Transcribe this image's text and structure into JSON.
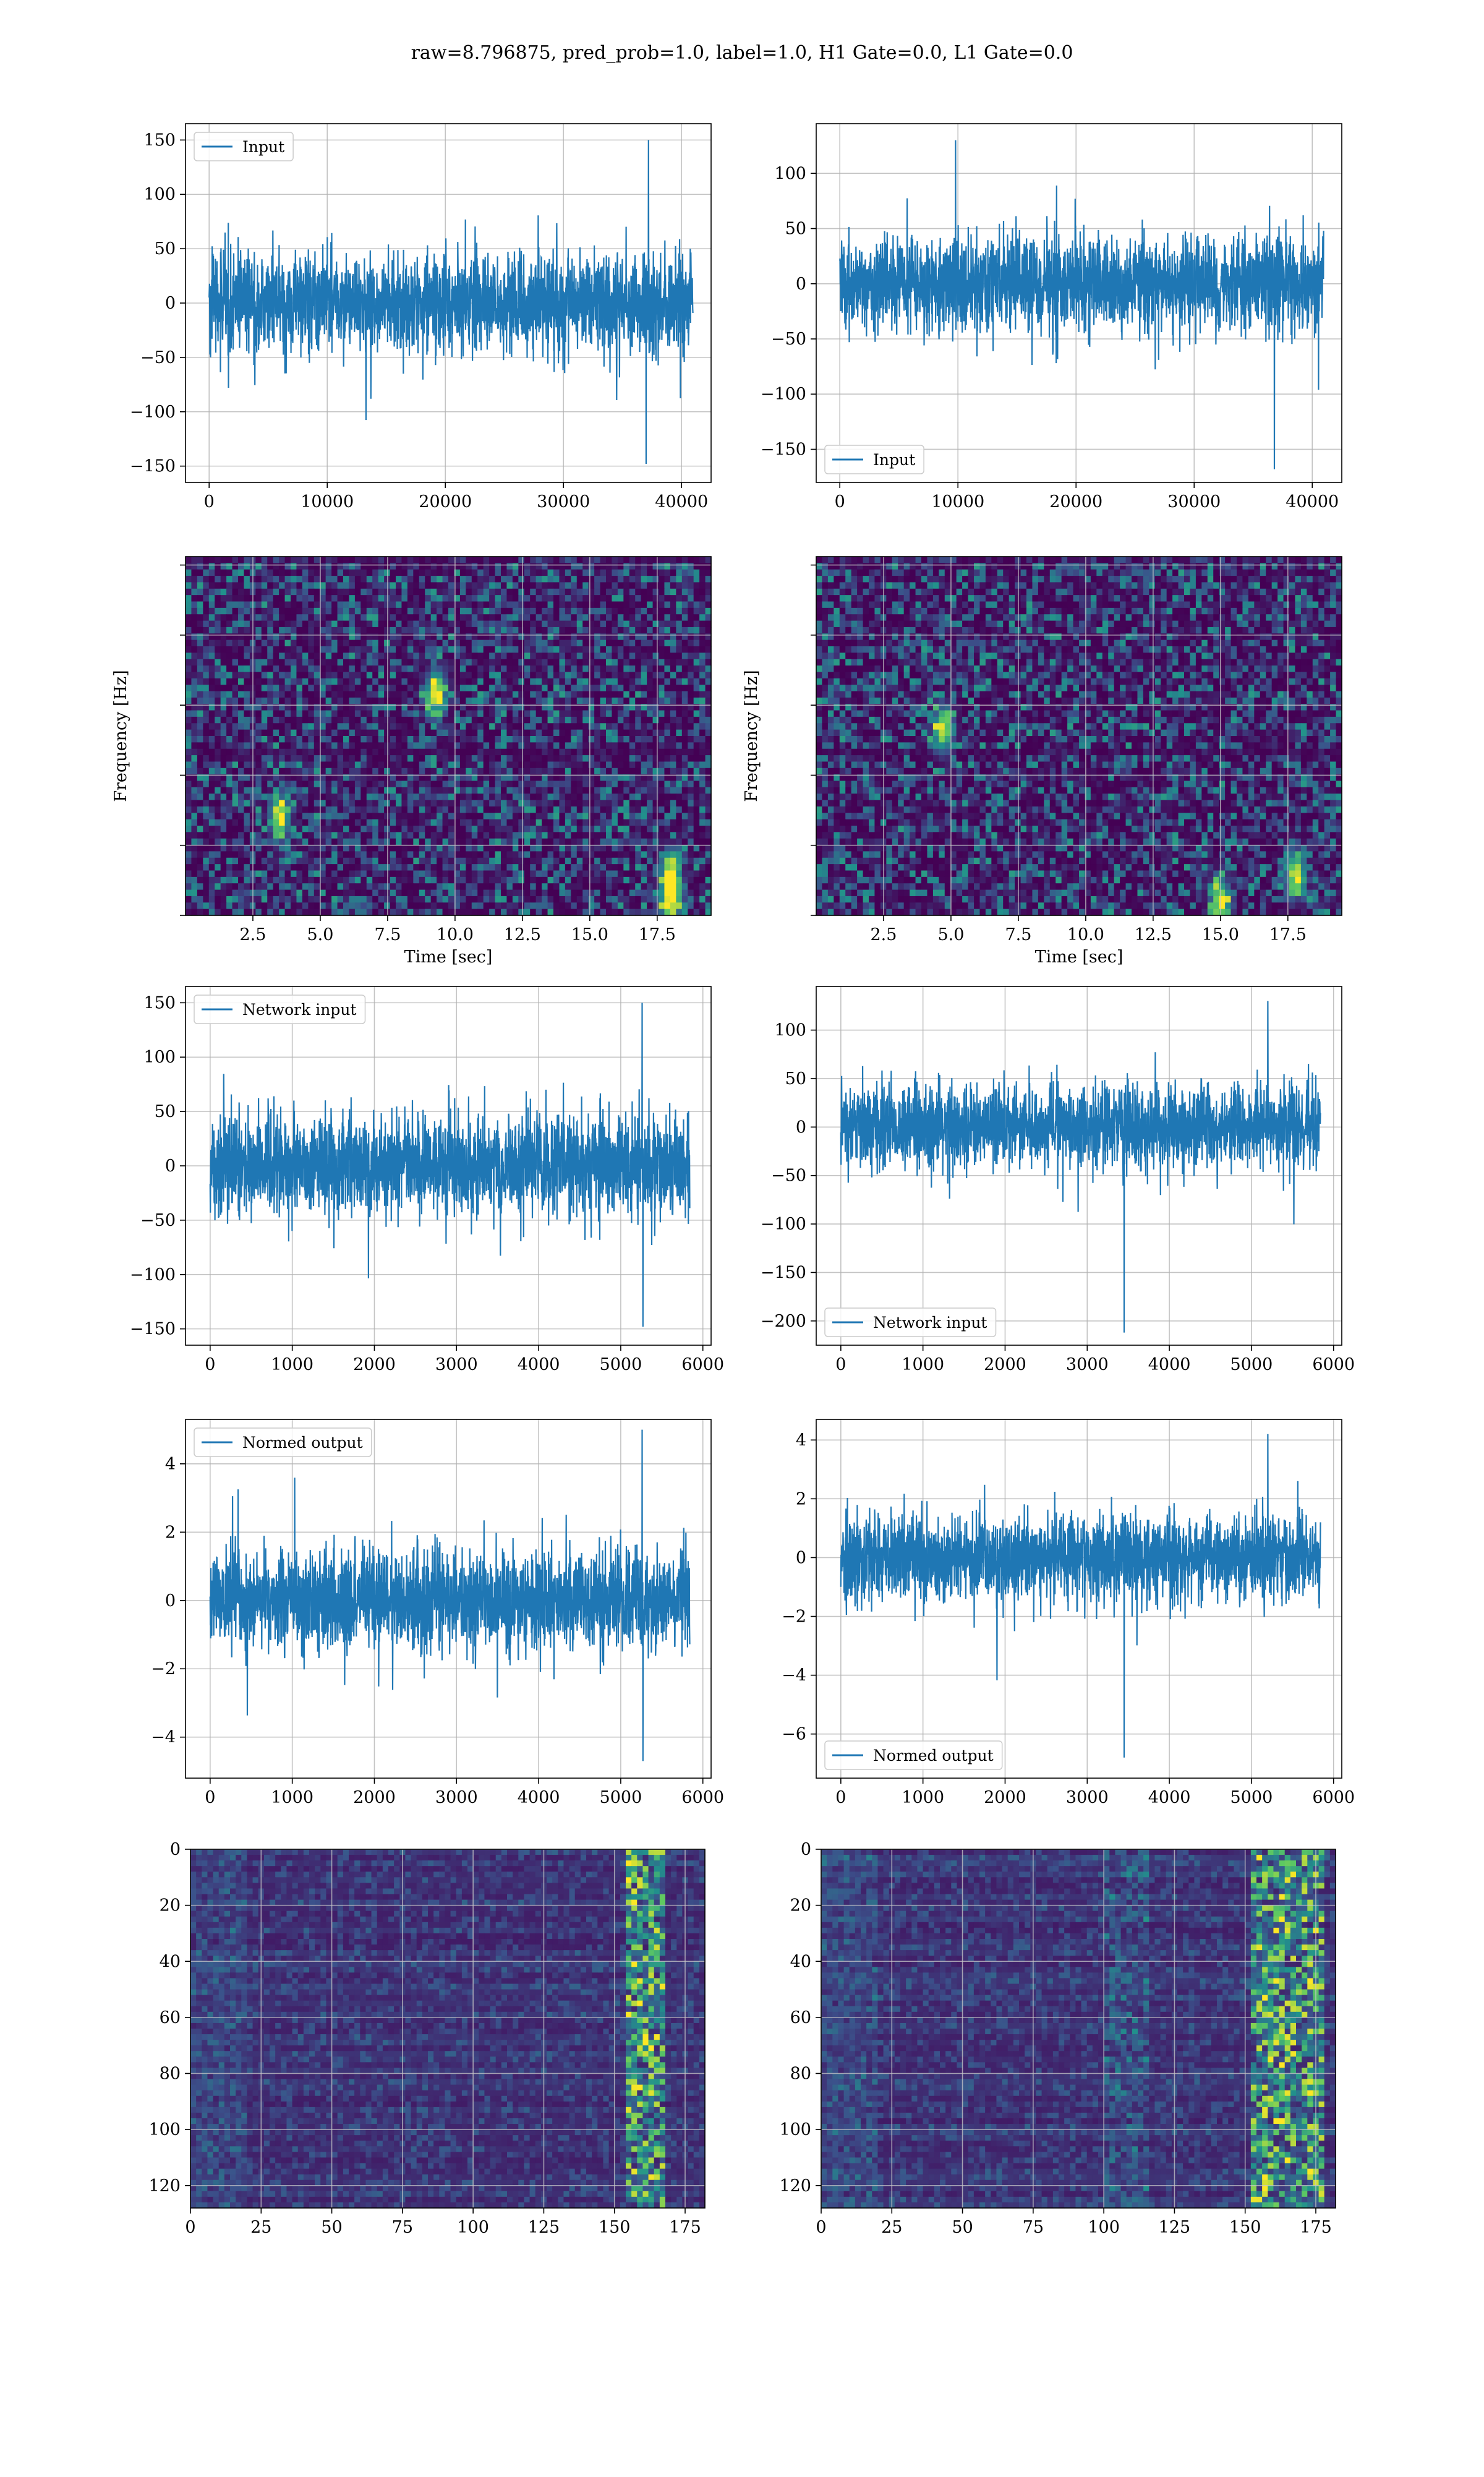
{
  "figure": {
    "title": "raw=8.796875, pred_prob=1.0, label=1.0, H1 Gate=0.0, L1 Gate=0.0"
  },
  "colors": {
    "line": "#1f77b4",
    "grid": "#b0b0b0",
    "viridis_dark": "#440154",
    "viridis_mid": "#21918c",
    "viridis_bright": "#fde725"
  },
  "chart_data": [
    {
      "id": "row1-left",
      "type": "line",
      "title": "",
      "xlabel": "",
      "ylabel": "",
      "xlim": [
        -2000,
        42500
      ],
      "ylim": [
        -165,
        165
      ],
      "xticks": [
        0,
        10000,
        20000,
        30000,
        40000
      ],
      "yticks": [
        -150,
        -100,
        -50,
        0,
        50,
        100,
        150
      ],
      "grid": true,
      "legend": "upper left",
      "series": [
        {
          "name": "Input",
          "n_samples": 40960,
          "x_range": [
            0,
            40960
          ],
          "band_typical": [
            -75,
            80
          ],
          "extremes": {
            "max": 150,
            "min": -148,
            "max_at_x": 37200,
            "min_at_x": 37000
          }
        }
      ]
    },
    {
      "id": "row1-right",
      "type": "line",
      "title": "",
      "xlabel": "",
      "ylabel": "",
      "xlim": [
        -2000,
        42500
      ],
      "ylim": [
        -180,
        145
      ],
      "xticks": [
        0,
        10000,
        20000,
        30000,
        40000
      ],
      "yticks": [
        -150,
        -100,
        -50,
        0,
        50,
        100
      ],
      "grid": true,
      "legend": "lower left",
      "series": [
        {
          "name": "Input",
          "n_samples": 40960,
          "x_range": [
            0,
            40960
          ],
          "band_typical": [
            -70,
            75
          ],
          "extremes": {
            "max": 130,
            "min": -168,
            "max_at_x": 9800,
            "min_at_x": 36800
          }
        }
      ]
    },
    {
      "id": "row2-left",
      "type": "heatmap",
      "title": "",
      "xlabel": "Time [sec]",
      "ylabel": "Frequency [Hz]",
      "xlim": [
        0,
        19.5
      ],
      "ylim": [
        0,
        1024
      ],
      "xticks": [
        2.5,
        5.0,
        7.5,
        10.0,
        12.5,
        15.0,
        17.5
      ],
      "xtick_labels": [
        "2.5",
        "5.0",
        "7.5",
        "10.0",
        "12.5",
        "15.0",
        "17.5"
      ],
      "yticks": [
        0,
        200,
        400,
        600,
        800,
        1000
      ],
      "grid": true,
      "colormap": "viridis",
      "hotspots": [
        {
          "t": 18.0,
          "f": 40
        },
        {
          "t": 18.0,
          "f": 120
        },
        {
          "t": 9.3,
          "f": 640
        },
        {
          "t": 3.5,
          "f": 280
        }
      ]
    },
    {
      "id": "row2-right",
      "type": "heatmap",
      "title": "",
      "xlabel": "Time [sec]",
      "ylabel": "Frequency [Hz]",
      "xlim": [
        0,
        19.5
      ],
      "ylim": [
        0,
        1024
      ],
      "xticks": [
        2.5,
        5.0,
        7.5,
        10.0,
        12.5,
        15.0,
        17.5
      ],
      "xtick_labels": [
        "2.5",
        "5.0",
        "7.5",
        "10.0",
        "12.5",
        "15.0",
        "17.5"
      ],
      "yticks": [
        0,
        200,
        400,
        600,
        800,
        1000
      ],
      "grid": true,
      "colormap": "viridis",
      "hotspots": [
        {
          "t": 15.0,
          "f": 40
        },
        {
          "t": 17.8,
          "f": 120
        },
        {
          "t": 4.7,
          "f": 530
        }
      ]
    },
    {
      "id": "row3-left",
      "type": "line",
      "title": "",
      "xlabel": "",
      "ylabel": "",
      "xlim": [
        -300,
        6100
      ],
      "ylim": [
        -165,
        165
      ],
      "xticks": [
        0,
        1000,
        2000,
        3000,
        4000,
        5000,
        6000
      ],
      "yticks": [
        -150,
        -100,
        -50,
        0,
        50,
        100,
        150
      ],
      "grid": true,
      "legend": "upper left",
      "series": [
        {
          "name": "Network input",
          "n_samples": 5840,
          "x_range": [
            0,
            5840
          ],
          "band_typical": [
            -75,
            80
          ],
          "extremes": {
            "max": 150,
            "min": -148,
            "max_at_x": 5260,
            "min_at_x": 5270
          }
        }
      ]
    },
    {
      "id": "row3-right",
      "type": "line",
      "title": "",
      "xlabel": "",
      "ylabel": "",
      "xlim": [
        -300,
        6100
      ],
      "ylim": [
        -225,
        145
      ],
      "xticks": [
        0,
        1000,
        2000,
        3000,
        4000,
        5000,
        6000
      ],
      "yticks": [
        -200,
        -150,
        -100,
        -50,
        0,
        50,
        100
      ],
      "grid": true,
      "legend": "lower left",
      "series": [
        {
          "name": "Network input",
          "n_samples": 5840,
          "x_range": [
            0,
            5840
          ],
          "band_typical": [
            -70,
            75
          ],
          "extremes": {
            "max": 130,
            "min": -212,
            "max_at_x": 5200,
            "min_at_x": 3450
          }
        }
      ]
    },
    {
      "id": "row4-left",
      "type": "line",
      "title": "",
      "xlabel": "",
      "ylabel": "",
      "xlim": [
        -300,
        6100
      ],
      "ylim": [
        -5.2,
        5.3
      ],
      "xticks": [
        0,
        1000,
        2000,
        3000,
        4000,
        5000,
        6000
      ],
      "yticks": [
        -4,
        -2,
        0,
        2,
        4
      ],
      "grid": true,
      "legend": "upper left",
      "series": [
        {
          "name": "Normed output",
          "n_samples": 5840,
          "x_range": [
            0,
            5840
          ],
          "band_typical": [
            -2.4,
            2.6
          ],
          "extremes": {
            "max": 5.0,
            "min": -4.7,
            "max_at_x": 5260,
            "min_at_x": 5270
          }
        }
      ]
    },
    {
      "id": "row4-right",
      "type": "line",
      "title": "",
      "xlabel": "",
      "ylabel": "",
      "xlim": [
        -300,
        6100
      ],
      "ylim": [
        -7.5,
        4.7
      ],
      "xticks": [
        0,
        1000,
        2000,
        3000,
        4000,
        5000,
        6000
      ],
      "yticks": [
        -6,
        -4,
        -2,
        0,
        2,
        4
      ],
      "grid": true,
      "legend": "lower left",
      "series": [
        {
          "name": "Normed output",
          "n_samples": 5840,
          "x_range": [
            0,
            5840
          ],
          "band_typical": [
            -2.4,
            2.6
          ],
          "extremes": {
            "max": 4.2,
            "min": -6.8,
            "max_at_x": 5200,
            "min_at_x": 3450
          }
        }
      ]
    },
    {
      "id": "row5-left",
      "type": "heatmap",
      "title": "",
      "xlabel": "",
      "ylabel": "",
      "xlim": [
        0,
        182
      ],
      "ylim": [
        128,
        0
      ],
      "xticks": [
        0,
        25,
        50,
        75,
        100,
        125,
        150,
        175
      ],
      "yticks": [
        0,
        20,
        40,
        60,
        80,
        100,
        120
      ],
      "grid": true,
      "colormap": "viridis",
      "bright_columns": [
        155,
        168
      ]
    },
    {
      "id": "row5-right",
      "type": "heatmap",
      "title": "",
      "xlabel": "",
      "ylabel": "",
      "xlim": [
        0,
        182
      ],
      "ylim": [
        128,
        0
      ],
      "xticks": [
        0,
        25,
        50,
        75,
        100,
        125,
        150,
        175
      ],
      "yticks": [
        0,
        20,
        40,
        60,
        80,
        100,
        120
      ],
      "grid": true,
      "colormap": "viridis",
      "bright_columns": [
        152,
        178
      ],
      "faint_columns": [
        100,
        115
      ]
    }
  ]
}
